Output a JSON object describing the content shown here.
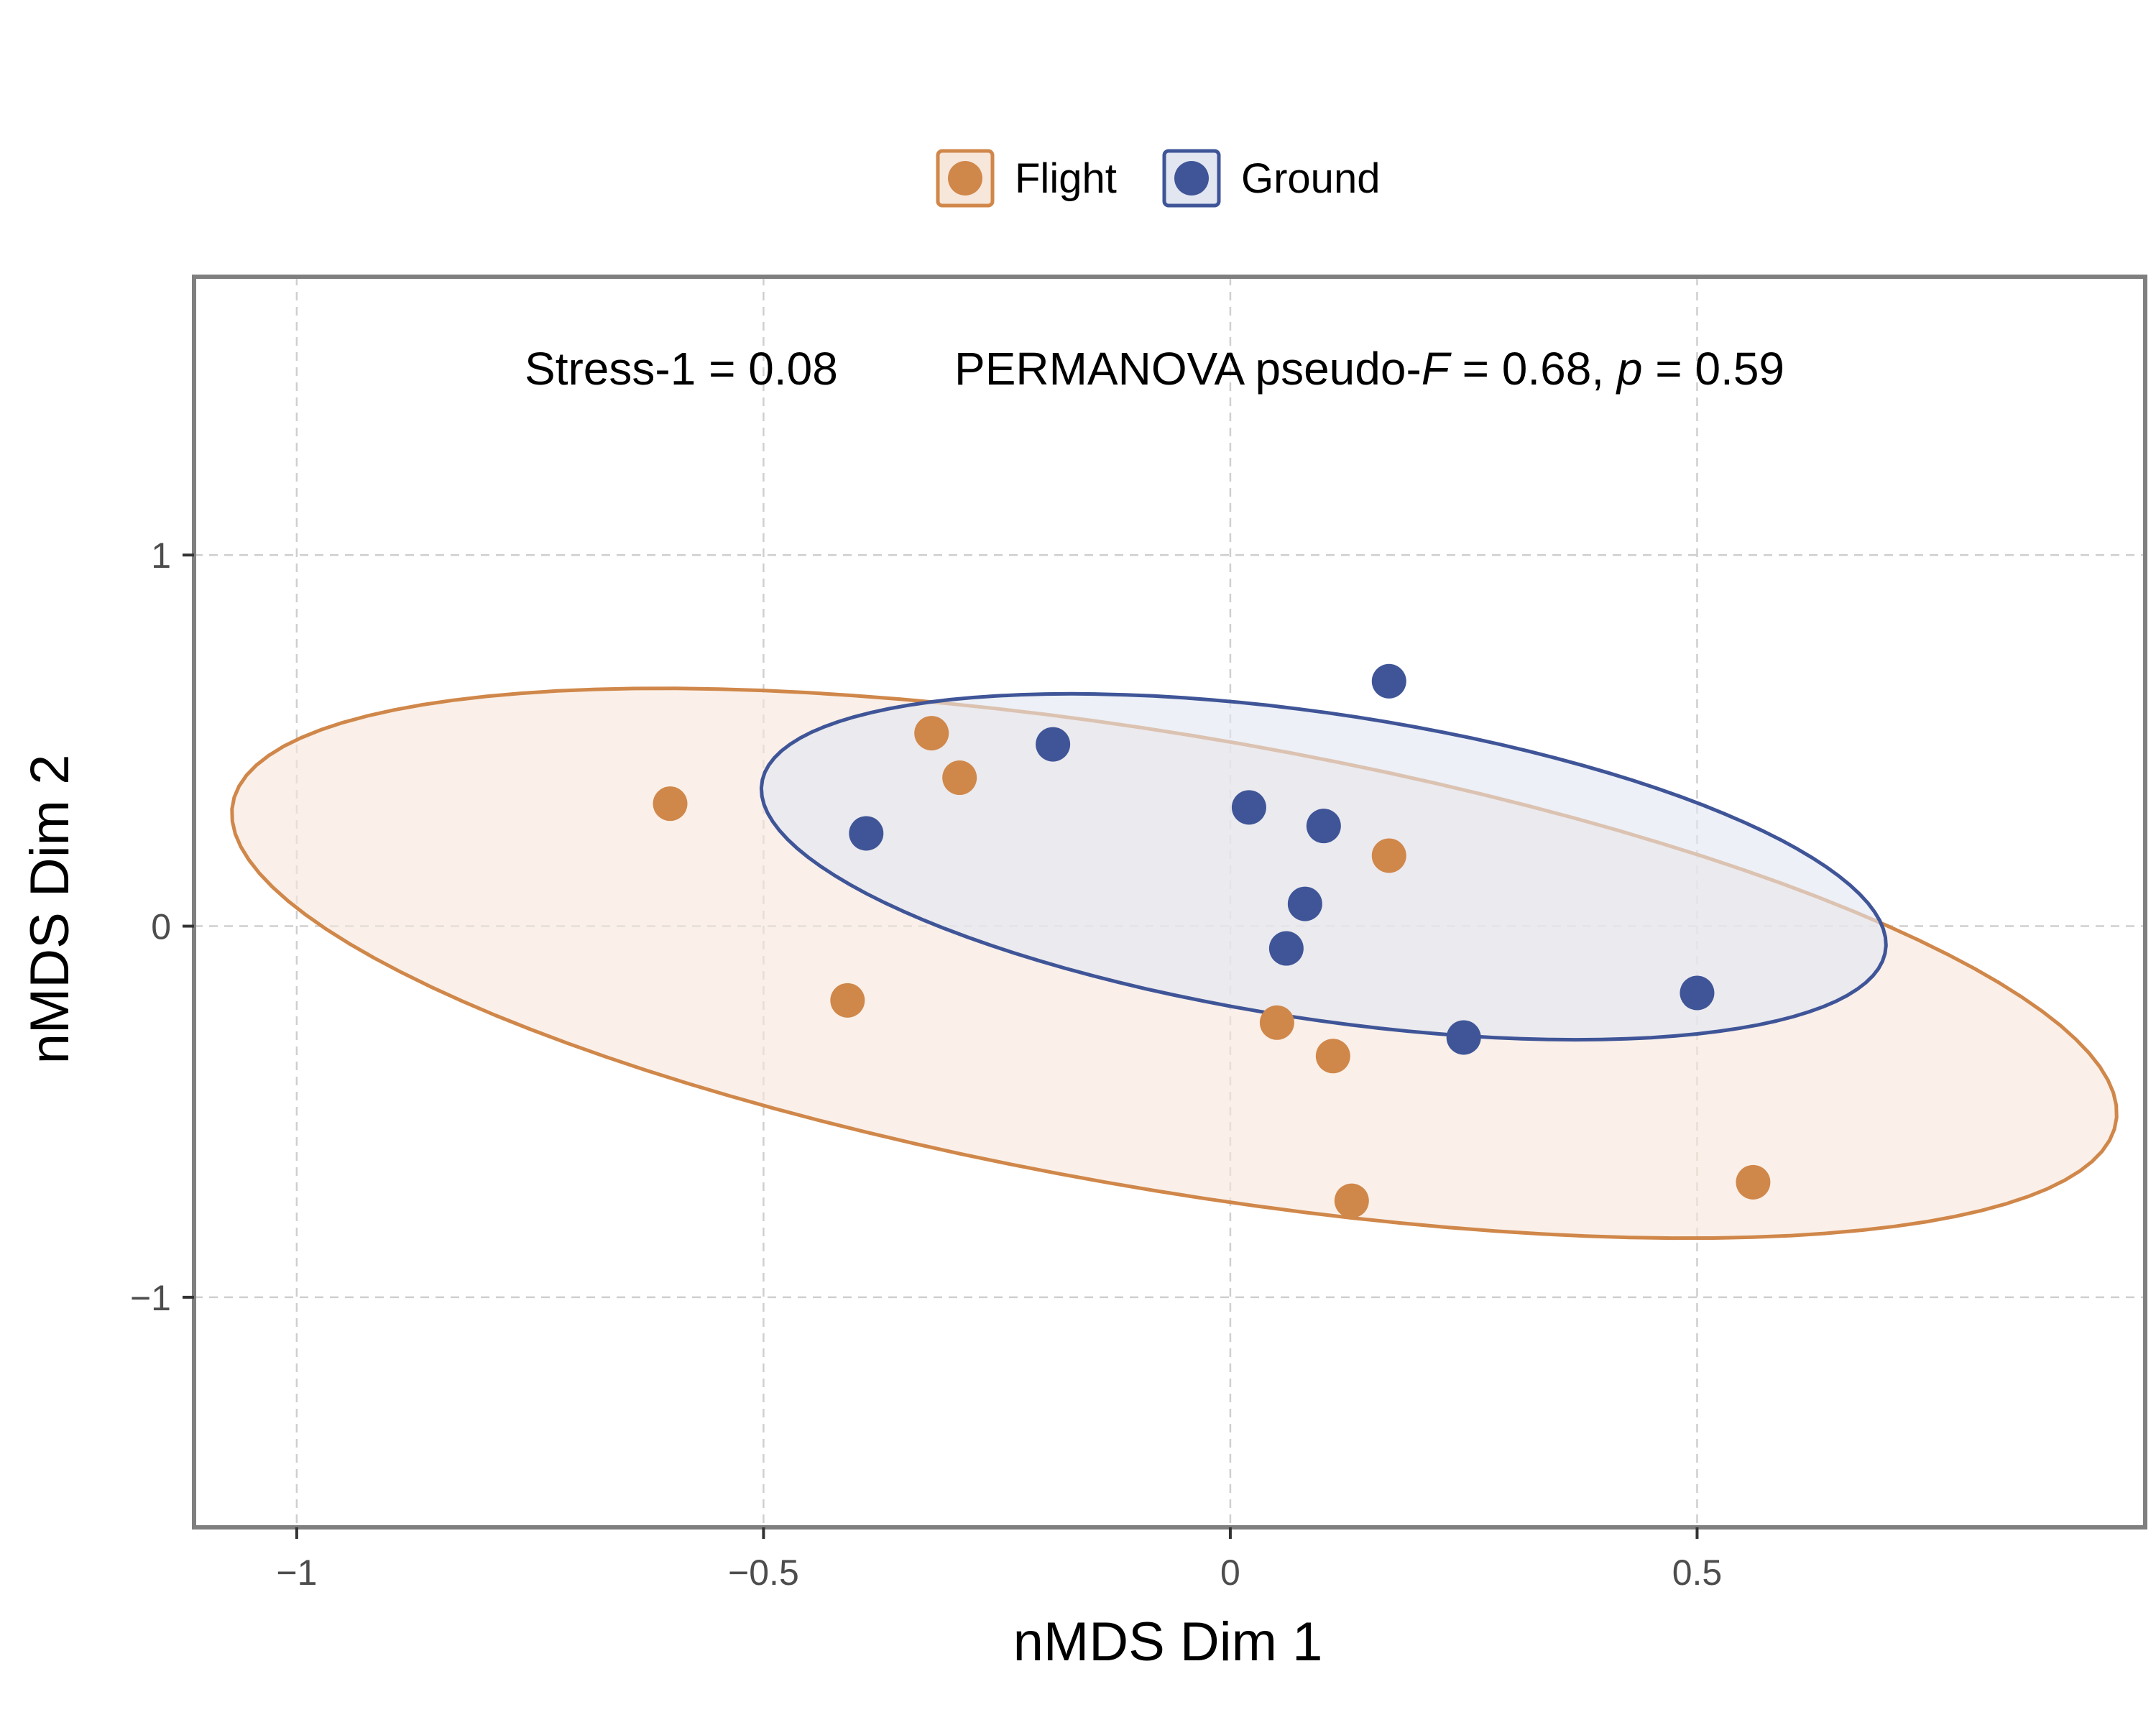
{
  "chart_data": {
    "type": "scatter",
    "xlabel": "nMDS Dim 1",
    "ylabel": "nMDS Dim 2",
    "xlim": [
      -1.11,
      0.98
    ],
    "ylim": [
      -1.62,
      1.75
    ],
    "xticks": [
      -1,
      -0.5,
      0,
      0.5
    ],
    "xtick_labels": [
      "−1",
      "−0.5",
      "0",
      "0.5"
    ],
    "yticks": [
      -1,
      0,
      1
    ],
    "ytick_labels": [
      "−1",
      "0",
      "1"
    ],
    "grid": true,
    "legend_position": "top",
    "annotation": {
      "stress": "Stress-1 = 0.08",
      "permanova_prefix": "PERMANOVA pseudo-",
      "f_symbol": "F",
      "f_value": " = 0.68, ",
      "p_symbol": "p",
      "p_value": " = 0.59"
    },
    "series": [
      {
        "name": "Flight",
        "color": "#D0874A",
        "points": [
          {
            "x": -0.6,
            "y": 0.33
          },
          {
            "x": -0.32,
            "y": 0.52
          },
          {
            "x": -0.29,
            "y": 0.4
          },
          {
            "x": -0.41,
            "y": -0.2
          },
          {
            "x": 0.17,
            "y": 0.19
          },
          {
            "x": 0.05,
            "y": -0.26
          },
          {
            "x": 0.11,
            "y": -0.35
          },
          {
            "x": 0.13,
            "y": -0.74
          },
          {
            "x": 0.56,
            "y": -0.69
          }
        ]
      },
      {
        "name": "Ground",
        "color": "#3F5598",
        "points": [
          {
            "x": -0.39,
            "y": 0.25
          },
          {
            "x": -0.19,
            "y": 0.49
          },
          {
            "x": 0.17,
            "y": 0.66
          },
          {
            "x": 0.02,
            "y": 0.32
          },
          {
            "x": 0.1,
            "y": 0.27
          },
          {
            "x": 0.08,
            "y": 0.06
          },
          {
            "x": 0.06,
            "y": -0.06
          },
          {
            "x": 0.25,
            "y": -0.3
          },
          {
            "x": 0.5,
            "y": -0.18
          }
        ]
      }
    ],
    "ellipses": [
      {
        "series": "Flight",
        "center": [
          -0.06,
          -0.1
        ],
        "semi_major": 1.12,
        "semi_minor": 0.56,
        "angle_deg": -30
      },
      {
        "series": "Ground",
        "center": [
          0.1,
          0.16
        ],
        "semi_major": 0.66,
        "semi_minor": 0.38,
        "angle_deg": -30
      }
    ]
  }
}
